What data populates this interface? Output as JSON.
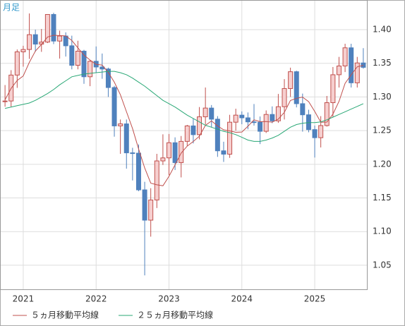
{
  "chart_data": {
    "type": "candlestick",
    "corner_label": "月足",
    "x": [
      2020.75,
      2020.8333,
      2020.9167,
      2021.0,
      2021.0833,
      2021.1667,
      2021.25,
      2021.3333,
      2021.4167,
      2021.5,
      2021.5833,
      2021.6667,
      2021.75,
      2021.8333,
      2021.9167,
      2022.0,
      2022.0833,
      2022.1667,
      2022.25,
      2022.3333,
      2022.4167,
      2022.5,
      2022.5833,
      2022.6667,
      2022.75,
      2022.8333,
      2022.9167,
      2023.0,
      2023.0833,
      2023.1667,
      2023.25,
      2023.3333,
      2023.4167,
      2023.5,
      2023.5833,
      2023.6667,
      2023.75,
      2023.8333,
      2023.9167,
      2024.0,
      2024.0833,
      2024.1667,
      2024.25,
      2024.3333,
      2024.4167,
      2024.5,
      2024.5833,
      2024.6667,
      2024.75,
      2024.8333,
      2024.9167,
      2025.0,
      2025.0833,
      2025.1667,
      2025.25,
      2025.3333,
      2025.4167,
      2025.5,
      2025.5833,
      2025.6667
    ],
    "open": [
      1.2935,
      1.294,
      1.3325,
      1.367,
      1.3705,
      1.3925,
      1.3785,
      1.3815,
      1.4225,
      1.383,
      1.3905,
      1.376,
      1.347,
      1.368,
      1.33,
      1.353,
      1.3445,
      1.3415,
      1.314,
      1.257,
      1.26,
      1.217,
      1.2165,
      1.162,
      1.117,
      1.147,
      1.205,
      1.2095,
      1.232,
      1.2025,
      1.234,
      1.257,
      1.244,
      1.2705,
      1.2835,
      1.267,
      1.22,
      1.215,
      1.2625,
      1.273,
      1.269,
      1.263,
      1.2625,
      1.249,
      1.274,
      1.2645,
      1.2855,
      1.3125,
      1.3375,
      1.29,
      1.2735,
      1.2515,
      1.2395,
      1.2575,
      1.2915,
      1.333,
      1.346,
      1.373,
      1.321,
      1.3505
    ],
    "high": [
      1.3177,
      1.3398,
      1.3705,
      1.376,
      1.424,
      1.4,
      1.401,
      1.422,
      1.425,
      1.3985,
      1.396,
      1.391,
      1.3835,
      1.37,
      1.3545,
      1.375,
      1.3645,
      1.3435,
      1.3165,
      1.2665,
      1.2665,
      1.2245,
      1.2295,
      1.174,
      1.1645,
      1.2155,
      1.2445,
      1.245,
      1.24,
      1.242,
      1.2585,
      1.268,
      1.285,
      1.314,
      1.288,
      1.2715,
      1.2335,
      1.2735,
      1.2825,
      1.2785,
      1.277,
      1.2895,
      1.271,
      1.28,
      1.286,
      1.3045,
      1.3265,
      1.3435,
      1.339,
      1.305,
      1.281,
      1.2575,
      1.2715,
      1.3015,
      1.3445,
      1.3595,
      1.379,
      1.379,
      1.3595,
      1.3725
    ],
    "low": [
      1.2855,
      1.2855,
      1.3135,
      1.345,
      1.3565,
      1.367,
      1.367,
      1.38,
      1.3785,
      1.357,
      1.36,
      1.341,
      1.341,
      1.3195,
      1.316,
      1.336,
      1.327,
      1.3,
      1.241,
      1.2155,
      1.1935,
      1.176,
      1.16,
      1.035,
      1.0925,
      1.135,
      1.199,
      1.184,
      1.1915,
      1.1805,
      1.2275,
      1.231,
      1.237,
      1.259,
      1.255,
      1.211,
      1.2035,
      1.2095,
      1.25,
      1.2595,
      1.252,
      1.2575,
      1.23,
      1.2465,
      1.261,
      1.2615,
      1.2665,
      1.3,
      1.2845,
      1.2485,
      1.2475,
      1.21,
      1.225,
      1.256,
      1.2705,
      1.314,
      1.337,
      1.314,
      1.314,
      1.342
    ],
    "close": [
      1.294,
      1.3325,
      1.367,
      1.3705,
      1.3925,
      1.3785,
      1.3815,
      1.4225,
      1.383,
      1.3905,
      1.376,
      1.347,
      1.368,
      1.33,
      1.353,
      1.3445,
      1.3415,
      1.314,
      1.257,
      1.26,
      1.217,
      1.2165,
      1.162,
      1.117,
      1.147,
      1.205,
      1.2095,
      1.232,
      1.2025,
      1.234,
      1.257,
      1.244,
      1.2705,
      1.2835,
      1.267,
      1.22,
      1.215,
      1.2625,
      1.273,
      1.269,
      1.263,
      1.2625,
      1.249,
      1.274,
      1.2645,
      1.2855,
      1.3125,
      1.3375,
      1.29,
      1.2735,
      1.2515,
      1.2395,
      1.2575,
      1.2915,
      1.333,
      1.346,
      1.373,
      1.321,
      1.3505,
      1.344
    ],
    "up_color": "#c0504d",
    "up_fill": "#f6cfcf",
    "down_color": "#4f81bd",
    "series": [
      {
        "name": "５ヵ月移動平均線",
        "color": "#c0504d",
        "values": [
          1.2957,
          1.3127,
          1.3244,
          1.3311,
          1.3513,
          1.3682,
          1.378,
          1.3891,
          1.3916,
          1.3912,
          1.3907,
          1.3838,
          1.3729,
          1.3623,
          1.3548,
          1.3485,
          1.3474,
          1.3366,
          1.322,
          1.3034,
          1.2779,
          1.2529,
          1.2225,
          1.1945,
          1.1719,
          1.1695,
          1.1681,
          1.1821,
          1.1992,
          1.2166,
          1.227,
          1.2339,
          1.2416,
          1.2578,
          1.2644,
          1.257,
          1.2512,
          1.2496,
          1.2475,
          1.2479,
          1.2565,
          1.266,
          1.2633,
          1.2635,
          1.2626,
          1.2671,
          1.2771,
          1.2948,
          1.298,
          1.2998,
          1.293,
          1.2784,
          1.2624,
          1.2627,
          1.2746,
          1.2935,
          1.3202,
          1.3329,
          1.3447,
          1.3469
        ]
      },
      {
        "name": "２５ヵ月移動平均線",
        "color": "#2aa876",
        "values": [
          1.283,
          1.285,
          1.287,
          1.289,
          1.291,
          1.295,
          1.3,
          1.305,
          1.311,
          1.318,
          1.324,
          1.33,
          1.332,
          1.334,
          1.335,
          1.336,
          1.337,
          1.338,
          1.338,
          1.336,
          1.333,
          1.328,
          1.322,
          1.316,
          1.309,
          1.302,
          1.295,
          1.29,
          1.285,
          1.279,
          1.273,
          1.268,
          1.263,
          1.258,
          1.255,
          1.252,
          1.249,
          1.247,
          1.244,
          1.24,
          1.236,
          1.234,
          1.234,
          1.236,
          1.239,
          1.243,
          1.249,
          1.255,
          1.259,
          1.261,
          1.262,
          1.262,
          1.263,
          1.266,
          1.27,
          1.274,
          1.278,
          1.282,
          1.286,
          1.29
        ]
      }
    ],
    "xlim": [
      2020.681,
      2025.716
    ],
    "xticks": [
      2021,
      2022,
      2023,
      2024,
      2025
    ],
    "ylim": [
      1.0143,
      1.444
    ],
    "yticks": [
      1.05,
      {
        "value": 1.1,
        "label": "1.10"
      },
      1.15,
      {
        "value": 1.2,
        "label": "1.20"
      },
      1.25,
      {
        "value": 1.3,
        "label": "1.30"
      },
      1.35,
      {
        "value": 1.4,
        "label": "1.40"
      }
    ],
    "grid": true
  }
}
